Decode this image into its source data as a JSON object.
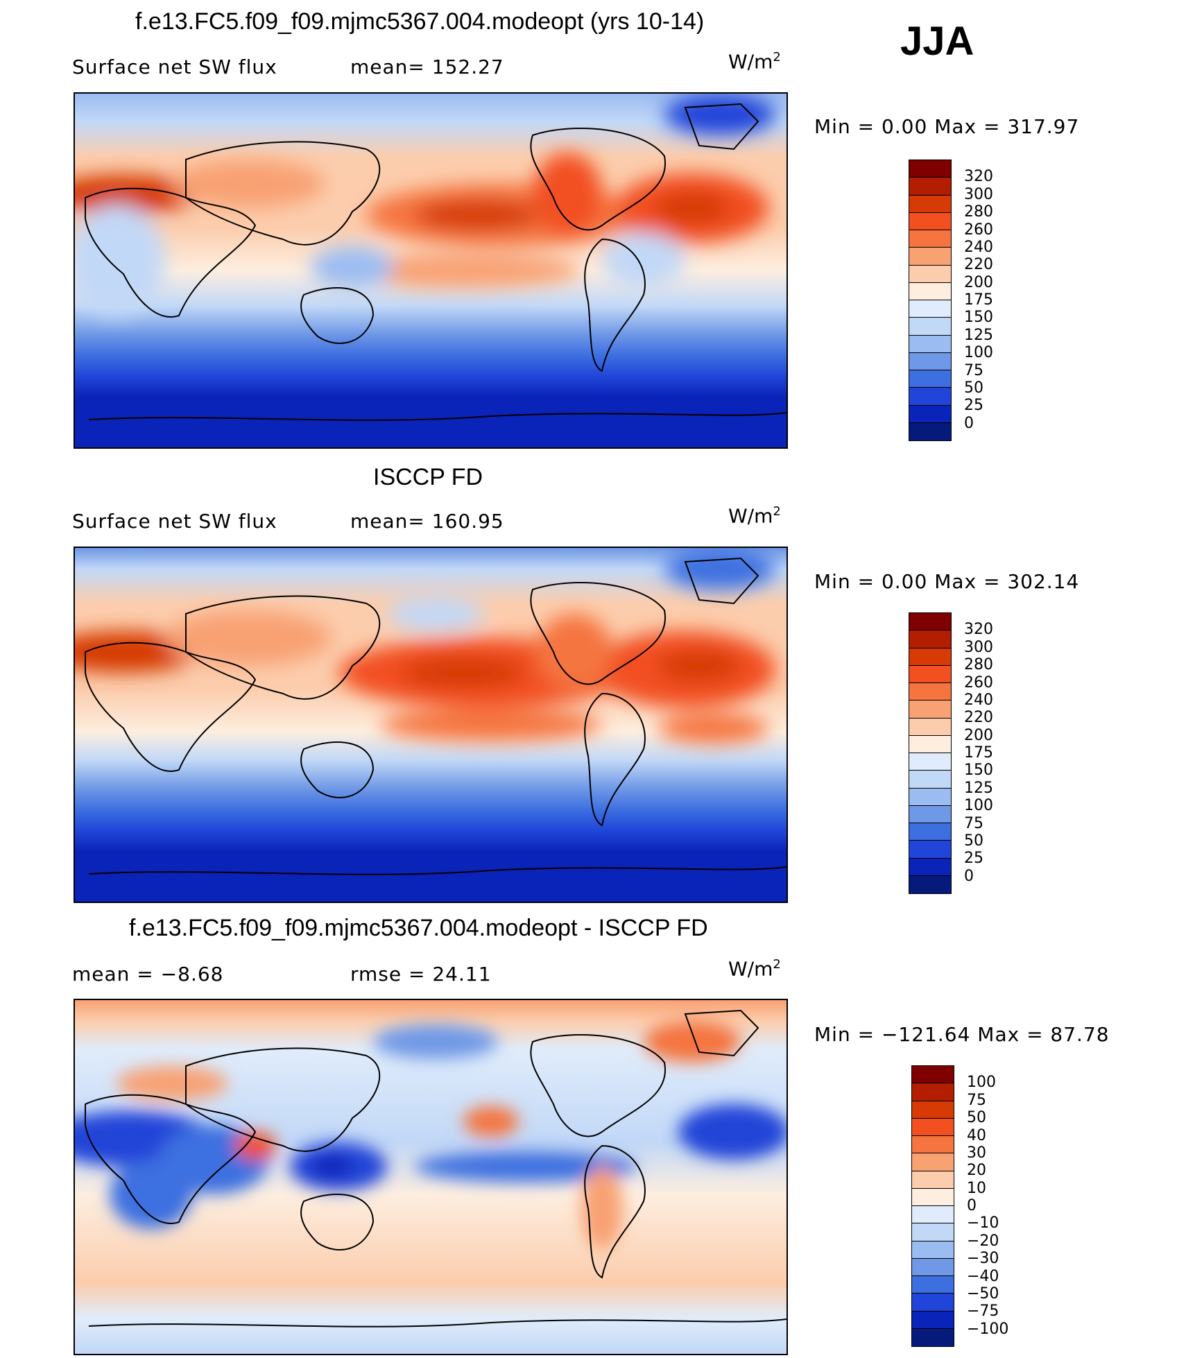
{
  "season": "JJA",
  "panels": [
    {
      "title": "f.e13.FC5.f09_f09.mjmc5367.004.modeopt (yrs 10-14)",
      "left_label": "Surface net SW flux",
      "right_label": "mean=  152.27",
      "units_base": "W/m",
      "units_exp": "2",
      "minmax": "Min =    0.00 Max  = 317.97",
      "colorbar": {
        "labels": [
          "320",
          "300",
          "280",
          "260",
          "240",
          "220",
          "200",
          "175",
          "150",
          "125",
          "100",
          "75",
          "50",
          "25",
          "0"
        ],
        "colors": [
          "#7f0000",
          "#b31d00",
          "#d63a05",
          "#f25020",
          "#f5743f",
          "#f8a173",
          "#fccdad",
          "#fdeee0",
          "#e0ecfb",
          "#c2d8f7",
          "#9bbcf1",
          "#6f98e6",
          "#3e6fe0",
          "#2045d8",
          "#0a23b8",
          "#061a7c"
        ]
      }
    },
    {
      "title": "ISCCP FD",
      "left_label": "Surface net SW flux",
      "right_label": "mean=  160.95",
      "units_base": "W/m",
      "units_exp": "2",
      "minmax": "Min =    0.00 Max  = 302.14",
      "colorbar": {
        "labels": [
          "320",
          "300",
          "280",
          "260",
          "240",
          "220",
          "200",
          "175",
          "150",
          "125",
          "100",
          "75",
          "50",
          "25",
          "0"
        ],
        "colors": [
          "#7f0000",
          "#b31d00",
          "#d63a05",
          "#f25020",
          "#f5743f",
          "#f8a173",
          "#fccdad",
          "#fdeee0",
          "#e0ecfb",
          "#c2d8f7",
          "#9bbcf1",
          "#6f98e6",
          "#3e6fe0",
          "#2045d8",
          "#0a23b8",
          "#061a7c"
        ]
      }
    },
    {
      "title": "f.e13.FC5.f09_f09.mjmc5367.004.modeopt - ISCCP FD",
      "left_label": "mean =   −8.68",
      "right_label": "rmse =   24.11",
      "units_base": "W/m",
      "units_exp": "2",
      "minmax": "Min = −121.64 Max =   87.78",
      "colorbar": {
        "labels": [
          "100",
          "75",
          "50",
          "40",
          "30",
          "20",
          "10",
          "0",
          "−10",
          "−20",
          "−30",
          "−40",
          "−50",
          "−75",
          "−100"
        ],
        "colors": [
          "#7f0000",
          "#b31d00",
          "#d63a05",
          "#f25020",
          "#f5743f",
          "#f8a173",
          "#fccdad",
          "#fdeee0",
          "#e0ecfb",
          "#c2d8f7",
          "#9bbcf1",
          "#6f98e6",
          "#3e6fe0",
          "#2045d8",
          "#0a23b8",
          "#061a7c"
        ]
      }
    }
  ]
}
